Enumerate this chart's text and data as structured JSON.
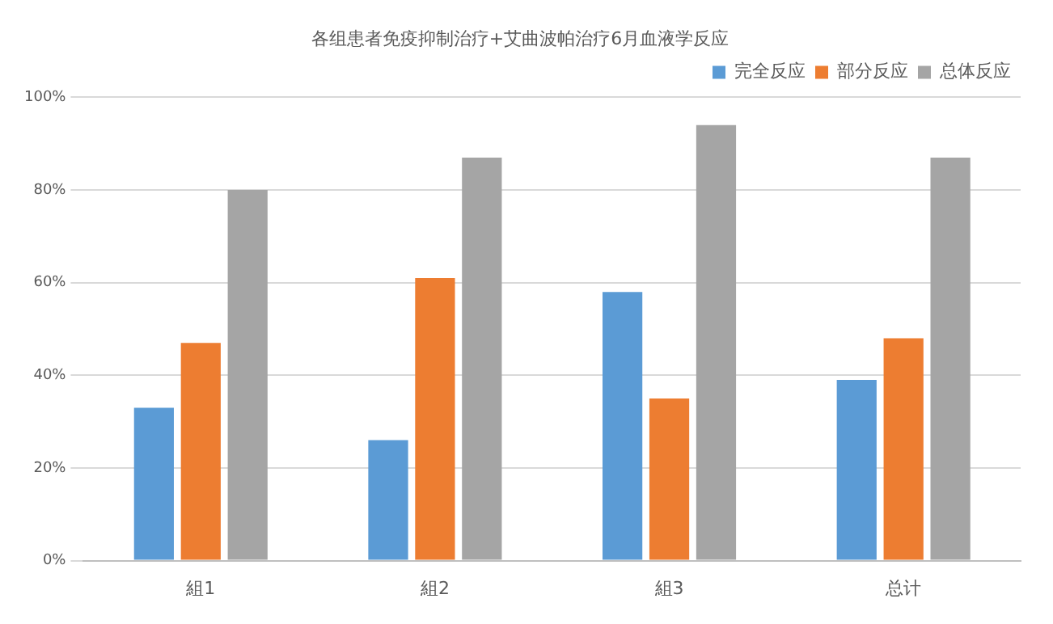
{
  "chart_data": {
    "type": "bar",
    "title": "各组患者免疫抑制治疗+艾曲波帕治疗6月血液学反应",
    "categories": [
      "組1",
      "組2",
      "組3",
      "总计"
    ],
    "series": [
      {
        "name": "完全反应",
        "color": "#5b9bd5",
        "values": [
          33,
          26,
          58,
          39
        ]
      },
      {
        "name": "部分反应",
        "color": "#ed7d31",
        "values": [
          47,
          61,
          35,
          48
        ]
      },
      {
        "name": "总体反应",
        "color": "#a5a5a5",
        "values": [
          80,
          87,
          94,
          87
        ]
      }
    ],
    "ylim": [
      0,
      100
    ],
    "yticks": [
      {
        "value": 0,
        "label": "0%"
      },
      {
        "value": 20,
        "label": "20%"
      },
      {
        "value": 40,
        "label": "40%"
      },
      {
        "value": 60,
        "label": "60%"
      },
      {
        "value": 80,
        "label": "80%"
      },
      {
        "value": 100,
        "label": "100%"
      }
    ],
    "grid": "y",
    "legend": "top right"
  }
}
